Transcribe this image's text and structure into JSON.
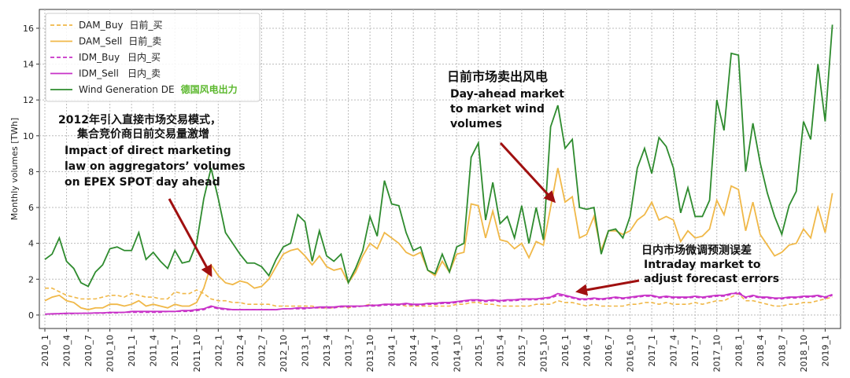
{
  "chart_data": {
    "type": "line",
    "y_label": "Monthly volumes [TWh]",
    "ylim": [
      -0.75,
      17.05
    ],
    "yticks": [
      0,
      2,
      4,
      6,
      8,
      10,
      12,
      14,
      16
    ],
    "grid": true,
    "legend": "upper left",
    "categories": [
      "2010_1",
      null,
      null,
      "2010_4",
      null,
      null,
      "2010_7",
      null,
      null,
      "2010_10",
      null,
      null,
      "2011_1",
      null,
      null,
      "2011_4",
      null,
      null,
      "2011_7",
      null,
      null,
      "2011_10",
      null,
      null,
      "2012_1",
      null,
      null,
      "2012_4",
      null,
      null,
      "2012_7",
      null,
      null,
      "2012_10",
      null,
      null,
      "2013_1",
      null,
      null,
      "2013_4",
      null,
      null,
      "2013_7",
      null,
      null,
      "2013_10",
      null,
      null,
      "2014_1",
      null,
      null,
      "2014_4",
      null,
      null,
      "2014_7",
      null,
      null,
      "2014_10",
      null,
      null,
      "2015_1",
      null,
      null,
      "2015_4",
      null,
      null,
      "2015_7",
      null,
      null,
      "2015_10",
      null,
      null,
      "2016_1",
      null,
      null,
      "2016_4",
      null,
      null,
      "2016_7",
      null,
      null,
      "2016_10",
      null,
      null,
      "2017_1",
      null,
      null,
      "2017_4",
      null,
      null,
      "2017_7",
      null,
      null,
      "2017_10",
      null,
      null,
      "2018_1",
      null,
      null,
      "2018_4",
      null,
      null,
      "2018_7",
      null,
      null,
      "2018_10",
      null,
      null,
      "2019_1",
      null
    ],
    "series": [
      {
        "name": "DAM_Buy",
        "label_cn": "日前_买",
        "color": "#f0b848",
        "dash": true,
        "values": [
          1.5,
          1.5,
          1.3,
          1.1,
          1.0,
          0.9,
          0.9,
          0.9,
          1.0,
          1.1,
          1.1,
          1.0,
          1.2,
          1.1,
          1.0,
          1.0,
          0.9,
          0.9,
          1.3,
          1.2,
          1.2,
          1.4,
          1.2,
          0.9,
          0.8,
          0.8,
          0.7,
          0.7,
          0.6,
          0.6,
          0.6,
          0.6,
          0.5,
          0.5,
          0.5,
          0.5,
          0.5,
          0.5,
          0.4,
          0.4,
          0.4,
          0.5,
          0.4,
          0.5,
          0.5,
          0.6,
          0.5,
          0.6,
          0.6,
          0.6,
          0.5,
          0.5,
          0.5,
          0.5,
          0.5,
          0.5,
          0.5,
          0.6,
          0.6,
          0.7,
          0.7,
          0.6,
          0.6,
          0.5,
          0.5,
          0.5,
          0.5,
          0.5,
          0.6,
          0.6,
          0.6,
          0.8,
          0.7,
          0.7,
          0.6,
          0.5,
          0.6,
          0.5,
          0.5,
          0.5,
          0.5,
          0.6,
          0.6,
          0.7,
          0.7,
          0.6,
          0.7,
          0.6,
          0.6,
          0.6,
          0.7,
          0.6,
          0.7,
          0.8,
          0.8,
          1.0,
          1.2,
          0.8,
          0.8,
          0.7,
          0.6,
          0.5,
          0.5,
          0.6,
          0.6,
          0.7,
          0.7,
          0.8,
          0.9,
          1.0
        ]
      },
      {
        "name": "DAM_Sell",
        "label_cn": "日前_卖",
        "color": "#f0b848",
        "dash": false,
        "values": [
          0.8,
          1.0,
          1.1,
          0.8,
          0.7,
          0.4,
          0.3,
          0.4,
          0.4,
          0.6,
          0.6,
          0.5,
          0.6,
          0.8,
          0.5,
          0.6,
          0.5,
          0.4,
          0.6,
          0.5,
          0.5,
          0.7,
          1.5,
          2.8,
          2.2,
          1.8,
          1.7,
          1.9,
          1.8,
          1.5,
          1.6,
          2.0,
          2.7,
          3.4,
          3.6,
          3.7,
          3.3,
          2.8,
          3.3,
          2.7,
          2.5,
          2.6,
          1.8,
          2.4,
          3.3,
          4.0,
          3.7,
          4.6,
          4.3,
          4.0,
          3.5,
          3.3,
          3.5,
          2.5,
          2.2,
          3.0,
          2.4,
          3.4,
          3.5,
          6.2,
          6.1,
          4.3,
          5.8,
          4.2,
          4.1,
          3.7,
          4.0,
          3.2,
          4.1,
          3.9,
          6.0,
          8.2,
          6.3,
          6.6,
          4.3,
          4.5,
          5.5,
          3.6,
          4.7,
          4.7,
          4.5,
          4.7,
          5.3,
          5.6,
          6.3,
          5.3,
          5.5,
          5.3,
          4.1,
          4.7,
          4.3,
          4.4,
          4.8,
          6.4,
          5.6,
          7.2,
          7.0,
          4.7,
          6.3,
          4.5,
          3.9,
          3.3,
          3.5,
          3.9,
          4.0,
          4.8,
          4.3,
          6.0,
          4.6,
          6.8
        ]
      },
      {
        "name": "IDM_Buy",
        "label_cn": "日内_买",
        "color": "#c832c8",
        "dash": true,
        "values": [
          0.05,
          0.06,
          0.07,
          0.08,
          0.08,
          0.1,
          0.1,
          0.1,
          0.1,
          0.12,
          0.12,
          0.15,
          0.15,
          0.15,
          0.15,
          0.15,
          0.15,
          0.2,
          0.2,
          0.2,
          0.2,
          0.25,
          0.3,
          0.45,
          0.35,
          0.3,
          0.3,
          0.3,
          0.3,
          0.3,
          0.3,
          0.3,
          0.3,
          0.35,
          0.35,
          0.35,
          0.35,
          0.4,
          0.4,
          0.4,
          0.4,
          0.45,
          0.45,
          0.45,
          0.5,
          0.5,
          0.5,
          0.55,
          0.55,
          0.55,
          0.6,
          0.55,
          0.55,
          0.6,
          0.6,
          0.65,
          0.65,
          0.7,
          0.75,
          0.8,
          0.8,
          0.75,
          0.8,
          0.75,
          0.8,
          0.8,
          0.85,
          0.85,
          0.85,
          0.9,
          0.95,
          1.1,
          1.05,
          0.95,
          0.85,
          0.85,
          0.9,
          0.85,
          0.9,
          0.95,
          0.9,
          0.95,
          1.0,
          1.05,
          1.05,
          0.95,
          1.0,
          0.95,
          0.95,
          0.95,
          1.0,
          0.95,
          1.0,
          1.05,
          1.05,
          1.15,
          1.3,
          0.95,
          1.05,
          0.95,
          0.95,
          0.9,
          0.9,
          0.95,
          0.95,
          1.0,
          1.0,
          1.05,
          0.95,
          1.1
        ]
      },
      {
        "name": "IDM_Sell",
        "label_cn": "日内_卖",
        "color": "#c832c8",
        "dash": false,
        "values": [
          0.05,
          0.07,
          0.08,
          0.1,
          0.1,
          0.1,
          0.1,
          0.12,
          0.12,
          0.15,
          0.15,
          0.15,
          0.2,
          0.2,
          0.2,
          0.2,
          0.2,
          0.2,
          0.2,
          0.25,
          0.25,
          0.3,
          0.35,
          0.5,
          0.4,
          0.35,
          0.3,
          0.3,
          0.3,
          0.3,
          0.3,
          0.3,
          0.3,
          0.35,
          0.35,
          0.4,
          0.4,
          0.4,
          0.45,
          0.45,
          0.45,
          0.5,
          0.5,
          0.5,
          0.5,
          0.55,
          0.55,
          0.6,
          0.6,
          0.6,
          0.65,
          0.6,
          0.6,
          0.65,
          0.65,
          0.7,
          0.7,
          0.75,
          0.8,
          0.85,
          0.85,
          0.8,
          0.85,
          0.8,
          0.85,
          0.85,
          0.9,
          0.9,
          0.9,
          0.95,
          1.0,
          1.2,
          1.1,
          1.0,
          0.9,
          0.9,
          0.95,
          0.9,
          0.95,
          1.0,
          0.95,
          1.0,
          1.05,
          1.1,
          1.1,
          1.0,
          1.05,
          1.0,
          1.0,
          1.0,
          1.05,
          1.0,
          1.05,
          1.1,
          1.1,
          1.2,
          1.2,
          1.0,
          1.1,
          1.0,
          1.0,
          0.95,
          0.95,
          1.0,
          1.0,
          1.05,
          1.05,
          1.1,
          1.0,
          1.15
        ]
      },
      {
        "name": "Wind Generation DE",
        "label_cn": "德国风电出力",
        "label_cn_color": "#5cb82e",
        "color": "#2e8b2e",
        "dash": false,
        "values": [
          3.1,
          3.4,
          4.3,
          3.0,
          2.6,
          1.8,
          1.6,
          2.4,
          2.8,
          3.7,
          3.8,
          3.6,
          3.6,
          4.6,
          3.1,
          3.5,
          3.0,
          2.6,
          3.6,
          2.9,
          3.0,
          4.0,
          6.5,
          8.2,
          6.5,
          4.6,
          4.0,
          3.4,
          2.9,
          2.9,
          2.7,
          2.2,
          3.1,
          3.8,
          4.0,
          5.6,
          5.2,
          3.0,
          4.7,
          3.3,
          3.0,
          3.4,
          1.8,
          2.6,
          3.6,
          5.5,
          4.4,
          7.5,
          6.2,
          6.1,
          4.6,
          3.6,
          3.8,
          2.5,
          2.3,
          3.4,
          2.4,
          3.8,
          4.0,
          8.8,
          9.6,
          5.3,
          7.4,
          5.1,
          5.5,
          4.3,
          6.1,
          4.0,
          6.0,
          4.2,
          10.5,
          11.7,
          9.3,
          9.8,
          6.0,
          5.9,
          6.0,
          3.4,
          4.7,
          4.8,
          4.3,
          5.5,
          8.2,
          9.3,
          7.9,
          9.9,
          9.4,
          8.2,
          5.7,
          7.1,
          5.5,
          5.5,
          6.4,
          12.0,
          10.3,
          14.6,
          14.5,
          8.0,
          10.7,
          8.5,
          6.8,
          5.5,
          4.5,
          6.1,
          6.9,
          10.8,
          9.8,
          14.0,
          10.8,
          16.2
        ]
      }
    ],
    "annotations": [
      {
        "lines_cn": [
          "2012年引入直接市场交易模式，",
          "集合竞价商日前交易量激增"
        ],
        "lines": [
          "Impact of direct marketing",
          "law on aggregators’ volumes",
          "on EPEX SPOT day ahead"
        ]
      },
      {
        "lines_cn": [
          "日前市场卖出风电"
        ],
        "lines": [
          "Day-ahead market",
          "to market wind",
          "volumes"
        ]
      },
      {
        "lines_cn": [
          "日内市场微调预测误差"
        ],
        "lines": [
          "Intraday market to",
          "adjust forecast errors"
        ]
      }
    ]
  }
}
